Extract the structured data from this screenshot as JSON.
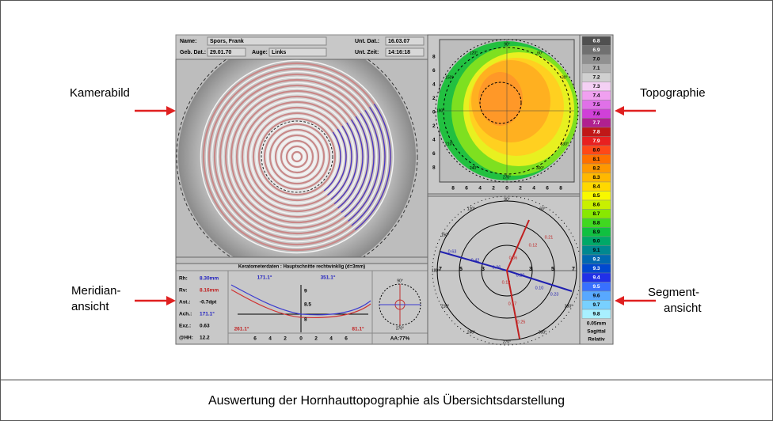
{
  "callouts": {
    "kamerabild": "Kamerabild",
    "topographie": "Topographie",
    "meridian": [
      "Meridian-",
      "ansicht"
    ],
    "segment": [
      "Segment-",
      "ansicht"
    ]
  },
  "caption": "Auswertung der Hornhauttopographie als Übersichtsdarstellung",
  "header": {
    "name_label": "Name:",
    "name": "Spors, Frank",
    "exam_date_label": "Unt. Dat.:",
    "exam_date": "16.03.07",
    "birth_label": "Geb. Dat.:",
    "birth": "29.01.70",
    "eye_label": "Auge:",
    "eye": "Links",
    "time_label": "Unt. Zeit:",
    "time": "14:16:18"
  },
  "scale": {
    "levels": [
      "6.8",
      "6.9",
      "7.0",
      "7.1",
      "7.2",
      "7.3",
      "7.4",
      "7.5",
      "7.6",
      "7.7",
      "7.8",
      "7.9",
      "8.0",
      "8.1",
      "8.2",
      "8.3",
      "8.4",
      "8.5",
      "8.6",
      "8.7",
      "8.8",
      "8.9",
      "9.0",
      "9.1",
      "9.2",
      "9.3",
      "9.4",
      "9.5",
      "9.6",
      "9.7",
      "9.8"
    ],
    "footer": [
      "0.05mm",
      "Sagittal",
      "Relativ"
    ]
  },
  "keratometer": {
    "title": "Keratometerdaten : Hauptschnitte rechtwinklig (d=3mm)",
    "rows": [
      [
        "Rh:",
        "8.30mm"
      ],
      [
        "Rv:",
        "8.16mm"
      ],
      [
        "Ast.:",
        "-0.7dpt"
      ],
      [
        "Ach.:",
        "171.1°"
      ],
      [
        "Exz.:",
        "0.63"
      ],
      [
        "@HH:",
        "12.2"
      ]
    ],
    "y_labels": [
      "9",
      "8.5",
      "8"
    ],
    "x_labels": [
      "6",
      "4",
      "2",
      "0",
      "2",
      "4",
      "6"
    ],
    "meridian_labels": [
      "171.1°",
      "351.1°",
      "261.1°",
      "81.1°"
    ],
    "compass": [
      "90°",
      "270°"
    ],
    "aa": "AA:77%"
  },
  "topography": {
    "y_labels": [
      "8",
      "6",
      "4",
      "2",
      "0",
      "2",
      "4",
      "6",
      "8"
    ],
    "x_labels": [
      "8",
      "6",
      "4",
      "2",
      "0",
      "2",
      "4",
      "6",
      "8"
    ],
    "angles": [
      "90°",
      "120°",
      "60°",
      "150°",
      "30°",
      "180°",
      "210°",
      "330°",
      "240°",
      "300°",
      "270°"
    ]
  },
  "segment": {
    "angles": [
      "90°",
      "60°",
      "120°",
      "150°",
      "180°",
      "210°",
      "240°",
      "270°",
      "300°",
      "330°"
    ],
    "ring_labels": [
      "7",
      "5",
      "3",
      "3",
      "5",
      "7"
    ],
    "values": [
      "0.63",
      "0.42",
      "0.26",
      "0.06",
      "0.12",
      "0.21",
      "0.20",
      "0.10",
      "0.23",
      "0.12",
      "0.17",
      "0.25"
    ]
  }
}
